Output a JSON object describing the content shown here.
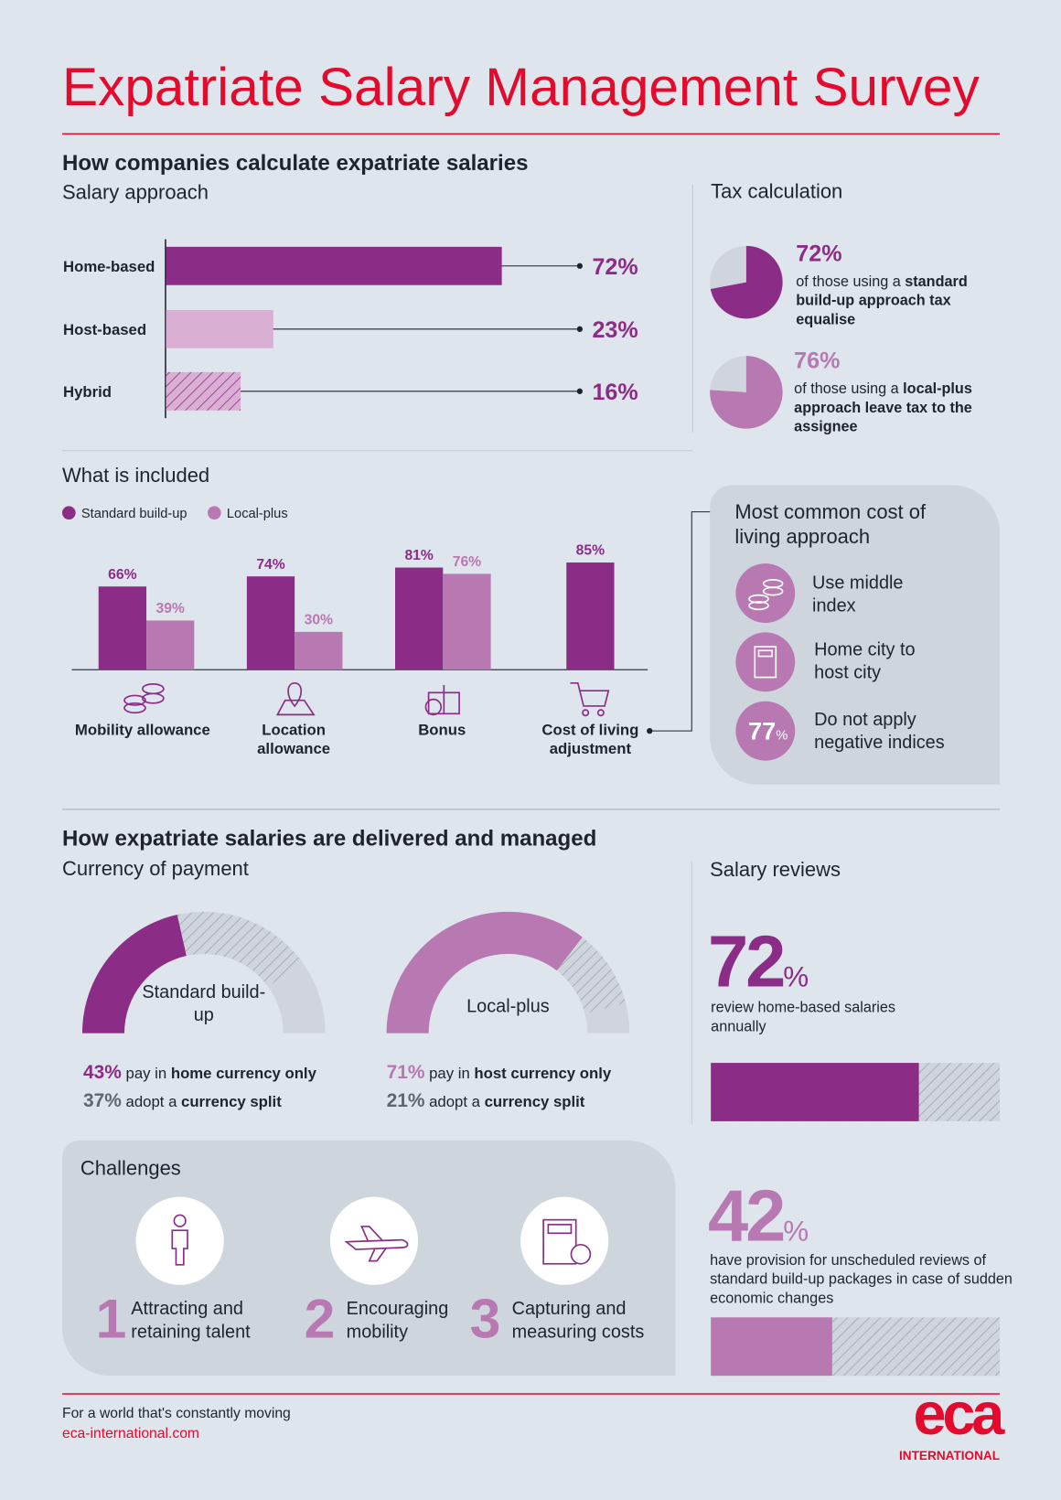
{
  "header": {
    "title": "Expatriate Salary Management Survey"
  },
  "calculate": {
    "heading": "How companies calculate expatriate salaries",
    "salary_approach": {
      "title": "Salary approach",
      "categories": [
        "Home-based",
        "Host-based",
        "Hybrid"
      ],
      "values": [
        72,
        23,
        16
      ],
      "value_labels": [
        "72%",
        "23%",
        "16%"
      ],
      "colors": [
        "#8b2d87",
        "#d9afd3",
        "#d9afd3"
      ],
      "hatched": [
        false,
        false,
        true
      ]
    },
    "tax": {
      "title": "Tax calculation",
      "items": [
        {
          "value": 72,
          "value_label": "72%",
          "color": "#8b2d87",
          "text": "of those using a ",
          "emphasis": "standard build-up approach tax equalise"
        },
        {
          "value": 76,
          "value_label": "76%",
          "color": "#b878b2",
          "text": "of those using a ",
          "emphasis": "local-plus approach leave tax to the assignee"
        }
      ]
    },
    "included": {
      "title": "What is included",
      "categories": [
        "Mobility allowance",
        "Location allowance",
        "Bonus",
        "Cost of living adjustment"
      ],
      "series": [
        {
          "name": "Standard build-up",
          "color": "#8b2d87",
          "values": [
            66,
            74,
            81,
            85
          ],
          "value_labels": [
            "66%",
            "74%",
            "81%",
            "85%"
          ]
        },
        {
          "name": "Local-plus",
          "color": "#b878b2",
          "values": [
            39,
            30,
            76,
            null
          ],
          "value_labels": [
            "39%",
            "30%",
            "76%",
            null
          ]
        }
      ]
    },
    "cost_of_living": {
      "title": "Most common cost of living approach",
      "items": [
        {
          "label": "Use middle index"
        },
        {
          "label": "Home city to host city"
        },
        {
          "value": 77,
          "unit": "%",
          "label": "Do not apply negative indices"
        }
      ]
    }
  },
  "delivered": {
    "heading": "How expatriate salaries are delivered and managed",
    "currency": {
      "title": "Currency of payment",
      "charts": [
        {
          "name": "Standard build-up",
          "color": "#8b2d87",
          "segments": [
            {
              "value": 43,
              "value_label": "43%",
              "text": "pay in ",
              "emphasis": "home currency only"
            },
            {
              "value": 37,
              "value_label": "37%",
              "text": "adopt a ",
              "emphasis": "currency split"
            }
          ]
        },
        {
          "name": "Local-plus",
          "color": "#b878b2",
          "segments": [
            {
              "value": 71,
              "value_label": "71%",
              "text": "pay in ",
              "emphasis": "host currency only"
            },
            {
              "value": 21,
              "value_label": "21%",
              "text": "adopt a ",
              "emphasis": "currency split"
            }
          ]
        }
      ]
    },
    "reviews": {
      "title": "Salary reviews",
      "items": [
        {
          "value": 72,
          "unit": "%",
          "color": "#8b2d87",
          "text": "review home-based salaries annually"
        },
        {
          "value": 42,
          "unit": "%",
          "color": "#b878b2",
          "text": "have provision for unscheduled reviews of standard build-up packages in case of sudden economic changes"
        }
      ]
    },
    "challenges": {
      "title": "Challenges",
      "items": [
        {
          "number": 1,
          "label": "Attracting and retaining talent"
        },
        {
          "number": 2,
          "label": "Encouraging mobility"
        },
        {
          "number": 3,
          "label": "Capturing and measuring costs"
        }
      ]
    }
  },
  "footer": {
    "tagline": "For a world that's constantly moving",
    "url": "eca-international.com",
    "logo": "eca",
    "logo_sub": "INTERNATIONAL"
  }
}
